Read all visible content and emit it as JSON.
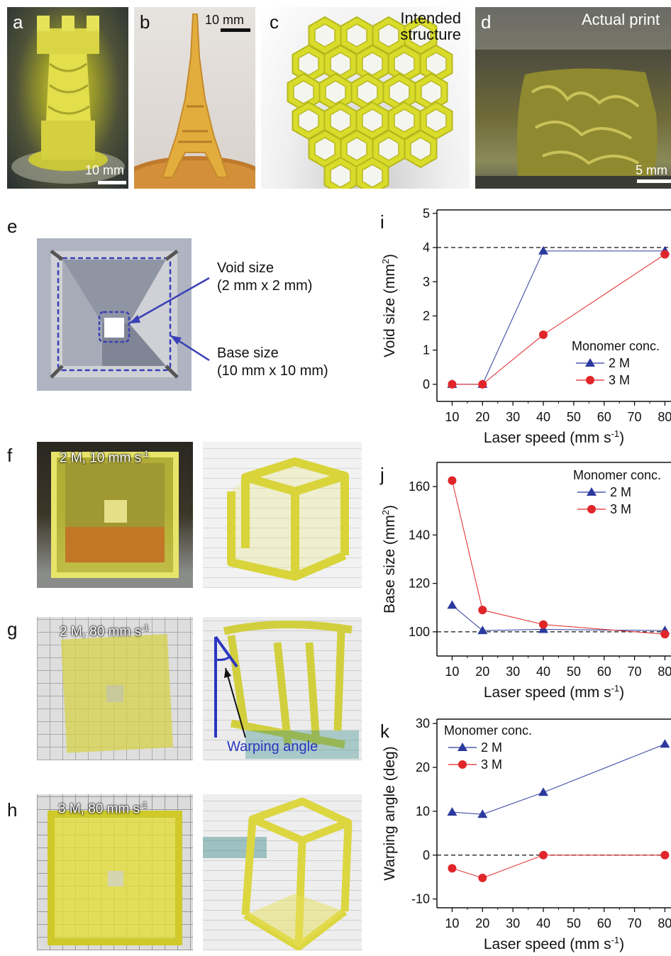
{
  "panels": {
    "a": {
      "label": "a",
      "scalebar": "10 mm"
    },
    "b": {
      "label": "b",
      "scalebar": "10 mm"
    },
    "c": {
      "label": "c",
      "caption_l1": "Intended",
      "caption_l2": "structure"
    },
    "d": {
      "label": "d",
      "caption": "Actual print",
      "scalebar": "5 mm"
    },
    "e": {
      "label": "e",
      "void_l1": "Void size",
      "void_l2": "(2 mm x 2 mm)",
      "base_l1": "Base size",
      "base_l2": "(10 mm x 10 mm)"
    },
    "f": {
      "label": "f",
      "caption": "2 M, 10 mm s",
      "exp": "-1"
    },
    "g": {
      "label": "g",
      "caption": "2 M, 80 mm s",
      "exp": "-1",
      "warp": "Warping angle"
    },
    "h": {
      "label": "h",
      "caption": "3 M, 80 mm s",
      "exp": "-1"
    }
  },
  "colors": {
    "s2M": "#2b3a9e",
    "s3M": "#e0262a",
    "yellow": "#e8e23c",
    "dashed": "#111111"
  },
  "chart_data": [
    {
      "id": "i",
      "label": "i",
      "type": "line",
      "xlabel": "Laser speed (mm s",
      "xlabel_exp": "-1",
      "xlabel_end": ")",
      "ylabel": "Void size (mm",
      "ylabel_exp": "2",
      "ylabel_end": ")",
      "xlim": [
        5,
        82
      ],
      "ylim": [
        -0.5,
        5.1
      ],
      "xticks": [
        10,
        20,
        30,
        40,
        50,
        60,
        70,
        80
      ],
      "yticks": [
        0,
        1,
        2,
        3,
        4,
        5
      ],
      "reference_line": 4,
      "legend_title": "Monomer conc.",
      "series": [
        {
          "name": "2 M",
          "x": [
            10,
            20,
            40,
            80
          ],
          "y": [
            0,
            0,
            3.9,
            3.9
          ]
        },
        {
          "name": "3 M",
          "x": [
            10,
            20,
            40,
            80
          ],
          "y": [
            0,
            0,
            1.45,
            3.8
          ]
        }
      ]
    },
    {
      "id": "j",
      "label": "j",
      "type": "line",
      "xlabel": "Laser speed (mm s",
      "xlabel_exp": "-1",
      "xlabel_end": ")",
      "ylabel": "Base size (mm",
      "ylabel_exp": "2",
      "ylabel_end": ")",
      "xlim": [
        5,
        82
      ],
      "ylim": [
        90,
        170
      ],
      "xticks": [
        10,
        20,
        30,
        40,
        50,
        60,
        70,
        80
      ],
      "yticks": [
        100,
        120,
        140,
        160
      ],
      "reference_line": 100,
      "legend_title": "Monomer conc.",
      "series": [
        {
          "name": "2 M",
          "x": [
            10,
            20,
            40,
            80
          ],
          "y": [
            111,
            100.5,
            101,
            100.5
          ]
        },
        {
          "name": "3 M",
          "x": [
            10,
            20,
            40,
            80
          ],
          "y": [
            162.5,
            109,
            103,
            99
          ]
        }
      ]
    },
    {
      "id": "k",
      "label": "k",
      "type": "line",
      "xlabel": "Laser speed (mm s",
      "xlabel_exp": "-1",
      "xlabel_end": ")",
      "ylabel": "Warping angle (deg)",
      "ylabel_exp": "",
      "ylabel_end": "",
      "xlim": [
        5,
        82
      ],
      "ylim": [
        -12,
        31
      ],
      "xticks": [
        10,
        20,
        30,
        40,
        50,
        60,
        70,
        80
      ],
      "yticks": [
        -10,
        0,
        10,
        20,
        30
      ],
      "reference_line": 0,
      "legend_title": "Monomer conc.",
      "series": [
        {
          "name": "2 M",
          "x": [
            10,
            20,
            40,
            80
          ],
          "y": [
            9.8,
            9.3,
            14.3,
            25.3
          ]
        },
        {
          "name": "3 M",
          "x": [
            10,
            20,
            40,
            80
          ],
          "y": [
            -3,
            -5.2,
            0,
            0
          ]
        }
      ]
    }
  ]
}
